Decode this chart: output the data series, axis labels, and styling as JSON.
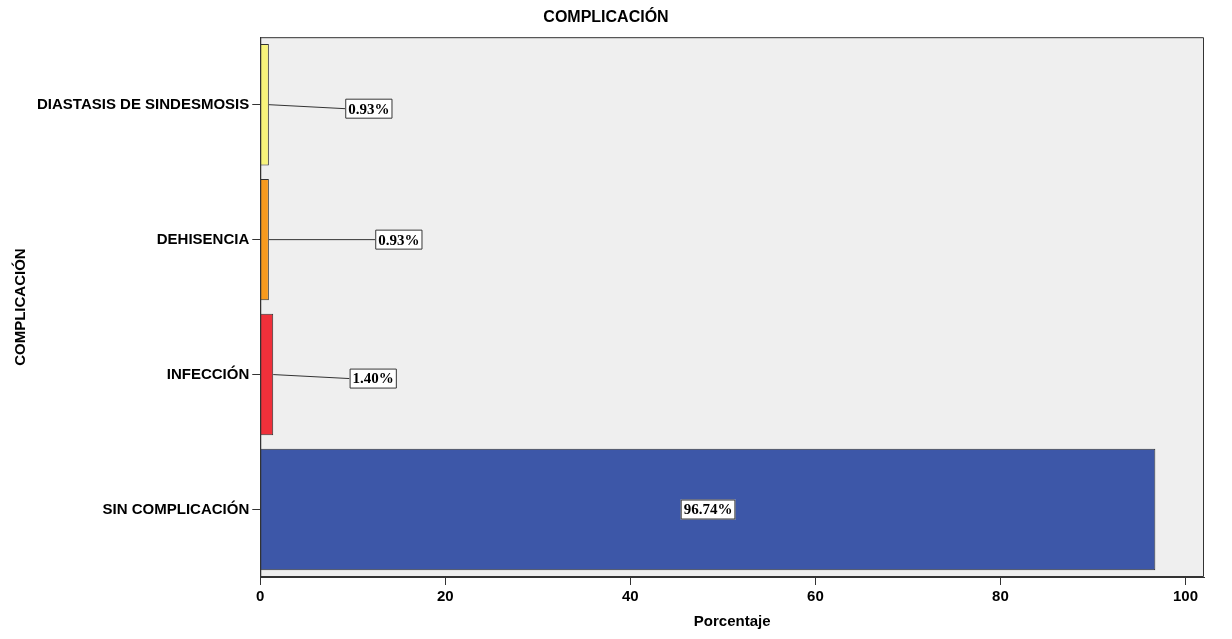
{
  "chart_data": {
    "type": "bar",
    "orientation": "horizontal",
    "title": "COMPLICACIÓN",
    "xlabel": "Porcentaje",
    "ylabel": "COMPLICACIÓN",
    "categories": [
      "DIASTASIS DE SINDESMOSIS",
      "DEHISENCIA",
      "INFECCIÓN",
      "SIN COMPLICACIÓN"
    ],
    "values": [
      0.93,
      0.93,
      1.4,
      96.74
    ],
    "colors": [
      "#f8f47a",
      "#f79a1e",
      "#f0303a",
      "#3d57a8"
    ],
    "value_labels": [
      "0.93%",
      "0.93%",
      "1.40%",
      "96.74%"
    ],
    "xlim": [
      0,
      102
    ],
    "xticks": [
      0,
      20,
      40,
      60,
      80,
      100
    ],
    "grid": false,
    "legend": false
  }
}
